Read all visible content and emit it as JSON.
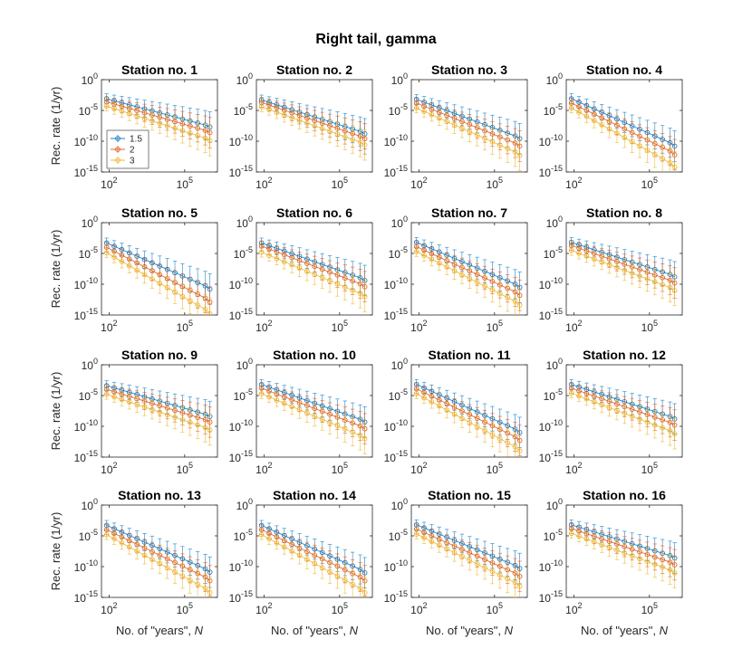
{
  "figure_title": "Right tail, gamma",
  "chart_data": {
    "type": "line",
    "description_series": "Recurrence rate vs number of years N, log-log, with error bars",
    "x_scale": "log",
    "y_scale": "log",
    "xlim": [
      50,
      2000000
    ],
    "ylim": [
      1e-15,
      1
    ],
    "x_ticks": [
      {
        "value": 100,
        "base": "10",
        "exp": "2"
      },
      {
        "value": 100000,
        "base": "10",
        "exp": "5"
      }
    ],
    "y_ticks": [
      {
        "value": 1,
        "base": "10",
        "exp": "0"
      },
      {
        "value": 1e-05,
        "base": "10",
        "exp": "-5"
      },
      {
        "value": 1e-10,
        "base": "10",
        "exp": "-10"
      },
      {
        "value": 1e-15,
        "base": "10",
        "exp": "-15"
      }
    ],
    "ylabel": "Rec. rate (1/yr)",
    "xlabel": "No. of \"years\", ",
    "xlabel_symbol": "N",
    "x": [
      80,
      160,
      320,
      640,
      1280,
      2560,
      5120,
      10240,
      20480,
      40960,
      81920,
      163840,
      327680,
      655360,
      1000000
    ],
    "legend": [
      "1.5",
      "2",
      "3"
    ],
    "colors": {
      "1.5": "#0072BD",
      "2": "#D95319",
      "3": "#EDB120"
    },
    "panels": [
      {
        "title": "Station no. 1",
        "series": [
          {
            "name": "1.5",
            "log10_start": -3.1,
            "log10_end": -7.7
          },
          {
            "name": "2",
            "log10_start": -3.6,
            "log10_end": -8.6
          },
          {
            "name": "3",
            "log10_start": -4.3,
            "log10_end": -9.9
          }
        ]
      },
      {
        "title": "Station no. 2",
        "series": [
          {
            "name": "1.5",
            "log10_start": -3.3,
            "log10_end": -8.8
          },
          {
            "name": "2",
            "log10_start": -3.7,
            "log10_end": -9.6
          },
          {
            "name": "3",
            "log10_start": -4.4,
            "log10_end": -10.6
          }
        ]
      },
      {
        "title": "Station no. 3",
        "series": [
          {
            "name": "1.5",
            "log10_start": -3.2,
            "log10_end": -9.6
          },
          {
            "name": "2",
            "log10_start": -3.8,
            "log10_end": -10.8
          },
          {
            "name": "3",
            "log10_start": -4.6,
            "log10_end": -12.3
          }
        ]
      },
      {
        "title": "Station no. 4",
        "series": [
          {
            "name": "1.5",
            "log10_start": -3.1,
            "log10_end": -10.8
          },
          {
            "name": "2",
            "log10_start": -3.8,
            "log10_end": -12.2
          },
          {
            "name": "3",
            "log10_start": -4.6,
            "log10_end": -14.2
          }
        ]
      },
      {
        "title": "Station no. 5",
        "series": [
          {
            "name": "1.5",
            "log10_start": -3.3,
            "log10_end": -10.8
          },
          {
            "name": "2",
            "log10_start": -4.0,
            "log10_end": -12.9
          },
          {
            "name": "3",
            "log10_start": -4.9,
            "log10_end": -14.8
          }
        ]
      },
      {
        "title": "Station no. 6",
        "series": [
          {
            "name": "1.5",
            "log10_start": -3.3,
            "log10_end": -9.4
          },
          {
            "name": "2",
            "log10_start": -3.8,
            "log10_end": -10.4
          },
          {
            "name": "3",
            "log10_start": -4.8,
            "log10_end": -12.0
          }
        ]
      },
      {
        "title": "Station no. 7",
        "series": [
          {
            "name": "1.5",
            "log10_start": -3.2,
            "log10_end": -10.5
          },
          {
            "name": "2",
            "log10_start": -3.9,
            "log10_end": -11.8
          },
          {
            "name": "3",
            "log10_start": -4.7,
            "log10_end": -13.4
          }
        ]
      },
      {
        "title": "Station no. 8",
        "series": [
          {
            "name": "1.5",
            "log10_start": -3.2,
            "log10_end": -8.8
          },
          {
            "name": "2",
            "log10_start": -3.7,
            "log10_end": -9.8
          },
          {
            "name": "3",
            "log10_start": -4.5,
            "log10_end": -11.0
          }
        ]
      },
      {
        "title": "Station no. 9",
        "series": [
          {
            "name": "1.5",
            "log10_start": -3.4,
            "log10_end": -8.4
          },
          {
            "name": "2",
            "log10_start": -4.0,
            "log10_end": -9.3
          },
          {
            "name": "3",
            "log10_start": -4.8,
            "log10_end": -10.6
          }
        ]
      },
      {
        "title": "Station no. 10",
        "series": [
          {
            "name": "1.5",
            "log10_start": -3.2,
            "log10_end": -9.3
          },
          {
            "name": "2",
            "log10_start": -3.8,
            "log10_end": -10.4
          },
          {
            "name": "3",
            "log10_start": -4.7,
            "log10_end": -12.0
          }
        ]
      },
      {
        "title": "Station no. 11",
        "series": [
          {
            "name": "1.5",
            "log10_start": -3.2,
            "log10_end": -11.0
          },
          {
            "name": "2",
            "log10_start": -3.9,
            "log10_end": -12.3
          },
          {
            "name": "3",
            "log10_start": -4.7,
            "log10_end": -14.0
          }
        ]
      },
      {
        "title": "Station no. 12",
        "series": [
          {
            "name": "1.5",
            "log10_start": -3.2,
            "log10_end": -8.8
          },
          {
            "name": "2",
            "log10_start": -3.8,
            "log10_end": -9.8
          },
          {
            "name": "3",
            "log10_start": -4.6,
            "log10_end": -11.2
          }
        ]
      },
      {
        "title": "Station no. 13",
        "series": [
          {
            "name": "1.5",
            "log10_start": -3.3,
            "log10_end": -10.9
          },
          {
            "name": "2",
            "log10_start": -4.0,
            "log10_end": -12.3
          },
          {
            "name": "3",
            "log10_start": -4.8,
            "log10_end": -14.2
          }
        ]
      },
      {
        "title": "Station no. 14",
        "series": [
          {
            "name": "1.5",
            "log10_start": -3.3,
            "log10_end": -11.0
          },
          {
            "name": "2",
            "log10_start": -4.0,
            "log10_end": -12.3
          },
          {
            "name": "3",
            "log10_start": -4.8,
            "log10_end": -14.2
          }
        ]
      },
      {
        "title": "Station no. 15",
        "series": [
          {
            "name": "1.5",
            "log10_start": -3.2,
            "log10_end": -10.3
          },
          {
            "name": "2",
            "log10_start": -3.9,
            "log10_end": -11.6
          },
          {
            "name": "3",
            "log10_start": -4.7,
            "log10_end": -13.2
          }
        ]
      },
      {
        "title": "Station no. 16",
        "series": [
          {
            "name": "1.5",
            "log10_start": -3.2,
            "log10_end": -8.6
          },
          {
            "name": "2",
            "log10_start": -3.8,
            "log10_end": -9.7
          },
          {
            "name": "3",
            "log10_start": -4.6,
            "log10_end": -11.0
          }
        ]
      }
    ]
  }
}
